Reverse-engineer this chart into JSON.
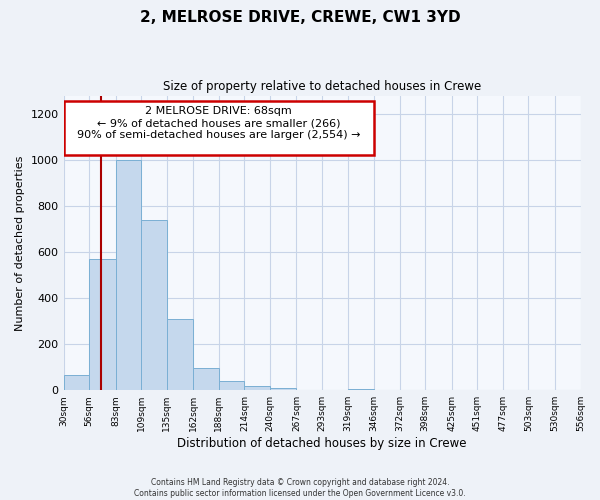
{
  "title": "2, MELROSE DRIVE, CREWE, CW1 3YD",
  "subtitle": "Size of property relative to detached houses in Crewe",
  "xlabel": "Distribution of detached houses by size in Crewe",
  "ylabel": "Number of detached properties",
  "bin_edges": [
    30,
    56,
    83,
    109,
    135,
    162,
    188,
    214,
    240,
    267,
    293,
    319,
    346,
    372,
    398,
    425,
    451,
    477,
    503,
    530,
    556
  ],
  "bar_heights": [
    65,
    570,
    1000,
    740,
    310,
    95,
    40,
    20,
    10,
    0,
    0,
    5,
    0,
    0,
    0,
    0,
    0,
    0,
    0,
    0
  ],
  "bar_color": "#c5d8ed",
  "bar_edge_color": "#7aafd4",
  "property_size": 68,
  "vline_color": "#aa0000",
  "ylim": [
    0,
    1280
  ],
  "yticks": [
    0,
    200,
    400,
    600,
    800,
    1000,
    1200
  ],
  "annotation_line1": "2 MELROSE DRIVE: 68sqm",
  "annotation_line2": "← 9% of detached houses are smaller (266)",
  "annotation_line3": "90% of semi-detached houses are larger (2,554) →",
  "annotation_box_color": "#cc0000",
  "footer_line1": "Contains HM Land Registry data © Crown copyright and database right 2024.",
  "footer_line2": "Contains public sector information licensed under the Open Government Licence v3.0.",
  "background_color": "#eef2f8",
  "plot_background_color": "#f5f8fd",
  "grid_color": "#c8d4e8"
}
